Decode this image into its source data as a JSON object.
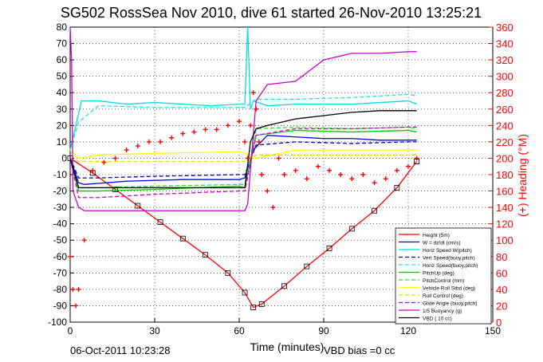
{
  "chart_data": {
    "type": "line",
    "title": "SG502 RossSea Nov 2010, dive 61 started 26-Nov-2010 13:25:21",
    "xlabel": "Time (minutes)",
    "ylabel_right": "(+) Heading (°M)",
    "xlim": [
      0,
      150
    ],
    "ylim": [
      -100,
      80
    ],
    "ylim_right": [
      0,
      360
    ],
    "x_ticks": [
      "0",
      "30",
      "60",
      "90",
      "120",
      "150"
    ],
    "y_ticks": [
      "80",
      "70",
      "60",
      "50",
      "40",
      "30",
      "20",
      "10",
      "0",
      "-10",
      "-20",
      "-30",
      "-40",
      "-50",
      "-60",
      "-70",
      "-80",
      "-90",
      "-100"
    ],
    "y_ticks_right": [
      "360",
      "340",
      "320",
      "300",
      "280",
      "260",
      "240",
      "220",
      "200",
      "180",
      "160",
      "140",
      "120",
      "100",
      "80",
      "60",
      "40",
      "20",
      "0"
    ],
    "grid": true,
    "legend_position": "bottom-right",
    "footer_left": "06-Oct-2011 10:23:28",
    "footer_right": "VBD bias =0 cc",
    "series": [
      {
        "name": "Height (5m)",
        "color": "#ff0000",
        "style": "solid",
        "marker": "square",
        "x": [
          0,
          8,
          16,
          24,
          32,
          40,
          48,
          56,
          62,
          65,
          68,
          76,
          84,
          92,
          100,
          108,
          116,
          123
        ],
        "y": [
          0,
          -9,
          -19,
          -29,
          -39,
          -49,
          -59,
          -70,
          -82,
          -91,
          -89,
          -78,
          -66,
          -55,
          -43,
          -32,
          -18,
          -2
        ]
      },
      {
        "name": "W = dz/dt (cm/s)",
        "color": "#0000ff",
        "style": "solid",
        "x": [
          0,
          1,
          3,
          5,
          20,
          40,
          60,
          62,
          65,
          70,
          80,
          90,
          100,
          110,
          120,
          123
        ],
        "y": [
          0,
          -5,
          -15,
          -16,
          -14,
          -13,
          -13,
          -12,
          5,
          14,
          13,
          12,
          12,
          11,
          11,
          11
        ]
      },
      {
        "name": "Horiz Speed W(pitch)",
        "color": "#00dddd",
        "style": "solid",
        "x": [
          0,
          2,
          4,
          10,
          20,
          30,
          40,
          50,
          60,
          62,
          63,
          64,
          65,
          70,
          80,
          90,
          100,
          110,
          120,
          123
        ],
        "y": [
          5,
          20,
          35,
          35,
          33,
          34,
          33,
          32,
          33,
          33,
          80,
          30,
          35,
          32,
          33,
          33,
          33,
          34,
          35,
          33
        ]
      },
      {
        "name": "Vert Speed(buoy,pitch)",
        "color": "#0000aa",
        "style": "dashed",
        "x": [
          0,
          3,
          10,
          30,
          60,
          62,
          66,
          80,
          100,
          120,
          123
        ],
        "y": [
          0,
          -12,
          -12,
          -11,
          -10,
          -10,
          8,
          10,
          9,
          10,
          10
        ]
      },
      {
        "name": "Horiz Speed(buoy,pitch)",
        "color": "#22e0e0",
        "style": "dashed",
        "x": [
          0,
          3,
          10,
          30,
          60,
          62,
          66,
          80,
          100,
          120,
          123
        ],
        "y": [
          5,
          22,
          32,
          31,
          31,
          31,
          36,
          36,
          37,
          39,
          38
        ]
      },
      {
        "name": "PitchUp (deg)",
        "color": "#00cc00",
        "style": "solid",
        "x": [
          0,
          3,
          10,
          30,
          60,
          62,
          66,
          80,
          100,
          120,
          123
        ],
        "y": [
          0,
          -20,
          -20,
          -19,
          -17,
          -18,
          14,
          17,
          16,
          17,
          16
        ]
      },
      {
        "name": "PitchControl (mm)",
        "color": "#33dd33",
        "style": "dashed",
        "x": [
          0,
          3,
          10,
          30,
          60,
          62,
          66,
          80,
          100,
          120,
          123
        ],
        "y": [
          0,
          -18,
          -18,
          -17,
          -16,
          -16,
          18,
          19,
          18,
          19,
          18
        ]
      },
      {
        "name": "Vehicle Roll Stbd (deg)",
        "color": "#ffff00",
        "style": "solid",
        "x": [
          0,
          3,
          10,
          30,
          60,
          62,
          66,
          80,
          100,
          120,
          123
        ],
        "y": [
          5,
          0,
          2,
          3,
          4,
          3,
          0,
          5,
          5,
          5,
          5
        ]
      },
      {
        "name": "Roll Control (deg)",
        "color": "#dddd00",
        "style": "dashed",
        "x": [
          0,
          3,
          10,
          30,
          60,
          62,
          66,
          80,
          100,
          120,
          123
        ],
        "y": [
          0,
          -2,
          -2,
          -2,
          -2,
          -2,
          2,
          2,
          2,
          2,
          2
        ]
      },
      {
        "name": "Glide Angle (buoy,pitch)",
        "color": "#cc00cc",
        "style": "dashed",
        "x": [
          0,
          3,
          10,
          30,
          60,
          62,
          66,
          80,
          100,
          120,
          123
        ],
        "y": [
          0,
          -24,
          -24,
          -22,
          -20,
          -20,
          14,
          18,
          18,
          19,
          19
        ]
      },
      {
        "name": "1/5 Buoyancy (g)",
        "color": "#cc00cc",
        "style": "solid",
        "x": [
          0,
          0.5,
          1,
          3,
          5,
          20,
          40,
          62,
          63,
          66,
          70,
          80,
          90,
          100,
          110,
          120,
          123
        ],
        "y": [
          80,
          60,
          -20,
          -30,
          -32,
          -32,
          -32,
          -32,
          -28,
          35,
          45,
          47,
          60,
          64,
          64,
          65,
          65
        ]
      },
      {
        "name": "VBD ( 10 cc)",
        "color": "#000000",
        "style": "solid",
        "x": [
          0,
          3,
          5,
          20,
          40,
          62,
          64,
          66,
          70,
          80,
          90,
          100,
          110,
          120,
          123
        ],
        "y": [
          0,
          -18,
          -18,
          -18,
          -18,
          -18,
          10,
          18,
          20,
          24,
          26,
          28,
          29,
          29,
          29
        ]
      }
    ],
    "heading_series": {
      "name": "(+) Heading (°M)",
      "color": "#ff0000",
      "marker": "plus",
      "axis": "right",
      "x": [
        0,
        1,
        2,
        3,
        5,
        8,
        12,
        16,
        20,
        24,
        28,
        32,
        36,
        40,
        44,
        48,
        52,
        56,
        60,
        62,
        63,
        64,
        65,
        66,
        67,
        68,
        70,
        72,
        74,
        76,
        80,
        84,
        88,
        92,
        96,
        100,
        104,
        108,
        112,
        116,
        120,
        123
      ],
      "y": [
        80,
        40,
        20,
        40,
        100,
        185,
        195,
        200,
        210,
        215,
        220,
        220,
        225,
        230,
        232,
        235,
        235,
        240,
        245,
        220,
        200,
        240,
        280,
        260,
        220,
        180,
        160,
        140,
        200,
        180,
        185,
        175,
        190,
        185,
        180,
        175,
        180,
        170,
        175,
        185,
        190,
        200
      ]
    }
  }
}
